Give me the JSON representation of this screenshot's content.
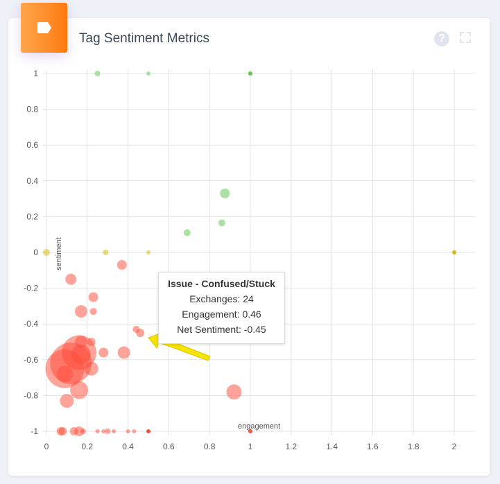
{
  "header": {
    "title": "Tag Sentiment Metrics",
    "help_icon": "?"
  },
  "tooltip": {
    "title": "Issue - Confused/Stuck",
    "exchanges": "Exchanges: 24",
    "engagement": "Engagement: 0.46",
    "sentiment": "Net Sentiment: -0.45"
  },
  "colors": {
    "positive": "#5cc24a",
    "neutral": "#d9b500",
    "negative": "#ff4a38",
    "accent": "#ff8a20"
  },
  "chart_data": {
    "type": "scatter",
    "title": "Tag Sentiment Metrics",
    "xlabel": "engagement",
    "ylabel": "sentiment",
    "xlim": [
      0,
      2
    ],
    "ylim": [
      -1,
      1
    ],
    "xticks": [
      "0",
      "0.2",
      "0.4",
      "0.6",
      "0.8",
      "1",
      "1.2",
      "1.4",
      "1.6",
      "1.8",
      "2"
    ],
    "yticks": [
      "1",
      "0.8",
      "0.6",
      "0.4",
      "0.2",
      "0",
      "-0.2",
      "-0.4",
      "-0.6",
      "-0.8",
      "-1"
    ],
    "grid": true,
    "points": [
      {
        "x": 0.25,
        "y": 1,
        "z": 11
      },
      {
        "x": 0.5,
        "y": 1,
        "z": 6
      },
      {
        "x": 1,
        "y": 1,
        "z": 6,
        "solid": true
      },
      {
        "x": 0.875,
        "y": 0.33,
        "z": 33
      },
      {
        "x": 0.86,
        "y": 0.165,
        "z": 17
      },
      {
        "x": 0.69,
        "y": 0.11,
        "z": 17
      },
      {
        "x": 0,
        "y": 0,
        "z": 17
      },
      {
        "x": 0.29,
        "y": 0,
        "z": 11
      },
      {
        "x": 0.5,
        "y": 0,
        "z": 6
      },
      {
        "x": 2,
        "y": 0,
        "z": 6,
        "solid": true
      },
      {
        "x": 0.37,
        "y": -0.07,
        "z": 33
      },
      {
        "x": 0.12,
        "y": -0.15,
        "z": 43
      },
      {
        "x": 0.23,
        "y": -0.25,
        "z": 33
      },
      {
        "x": 0.17,
        "y": -0.33,
        "z": 54
      },
      {
        "x": 0.23,
        "y": -0.33,
        "z": 17
      },
      {
        "x": 0.44,
        "y": -0.43,
        "z": 17
      },
      {
        "x": 0.46,
        "y": -0.45,
        "z": 24
      },
      {
        "x": 0.12,
        "y": -0.62,
        "z": 603
      },
      {
        "x": 0.16,
        "y": -0.56,
        "z": 419
      },
      {
        "x": 0.09,
        "y": -0.65,
        "z": 525
      },
      {
        "x": 0.17,
        "y": -0.5,
        "z": 54
      },
      {
        "x": 0.22,
        "y": -0.5,
        "z": 24
      },
      {
        "x": 0.28,
        "y": -0.56,
        "z": 33
      },
      {
        "x": 0.38,
        "y": -0.56,
        "z": 54
      },
      {
        "x": 0.17,
        "y": -0.57,
        "z": 131
      },
      {
        "x": 0.09,
        "y": -0.68,
        "z": 96
      },
      {
        "x": 0.22,
        "y": -0.65,
        "z": 67
      },
      {
        "x": 0.16,
        "y": -0.77,
        "z": 113
      },
      {
        "x": 0.1,
        "y": -0.83,
        "z": 67
      },
      {
        "x": 0.92,
        "y": -0.78,
        "z": 81
      },
      {
        "x": 0.07,
        "y": -1,
        "z": 24
      },
      {
        "x": 0.08,
        "y": -1,
        "z": 24
      },
      {
        "x": 0.135,
        "y": -1,
        "z": 24
      },
      {
        "x": 0.16,
        "y": -1,
        "z": 33
      },
      {
        "x": 0.18,
        "y": -1,
        "z": 11
      },
      {
        "x": 0.25,
        "y": -1,
        "z": 6
      },
      {
        "x": 0.28,
        "y": -1,
        "z": 6
      },
      {
        "x": 0.3,
        "y": -1,
        "z": 11
      },
      {
        "x": 0.33,
        "y": -1,
        "z": 6
      },
      {
        "x": 0.4,
        "y": -1,
        "z": 6
      },
      {
        "x": 0.43,
        "y": -1,
        "z": 6
      },
      {
        "x": 0.5,
        "y": -1,
        "z": 6,
        "solid": true
      },
      {
        "x": 1,
        "y": -1,
        "z": 6,
        "solid": true
      }
    ]
  }
}
